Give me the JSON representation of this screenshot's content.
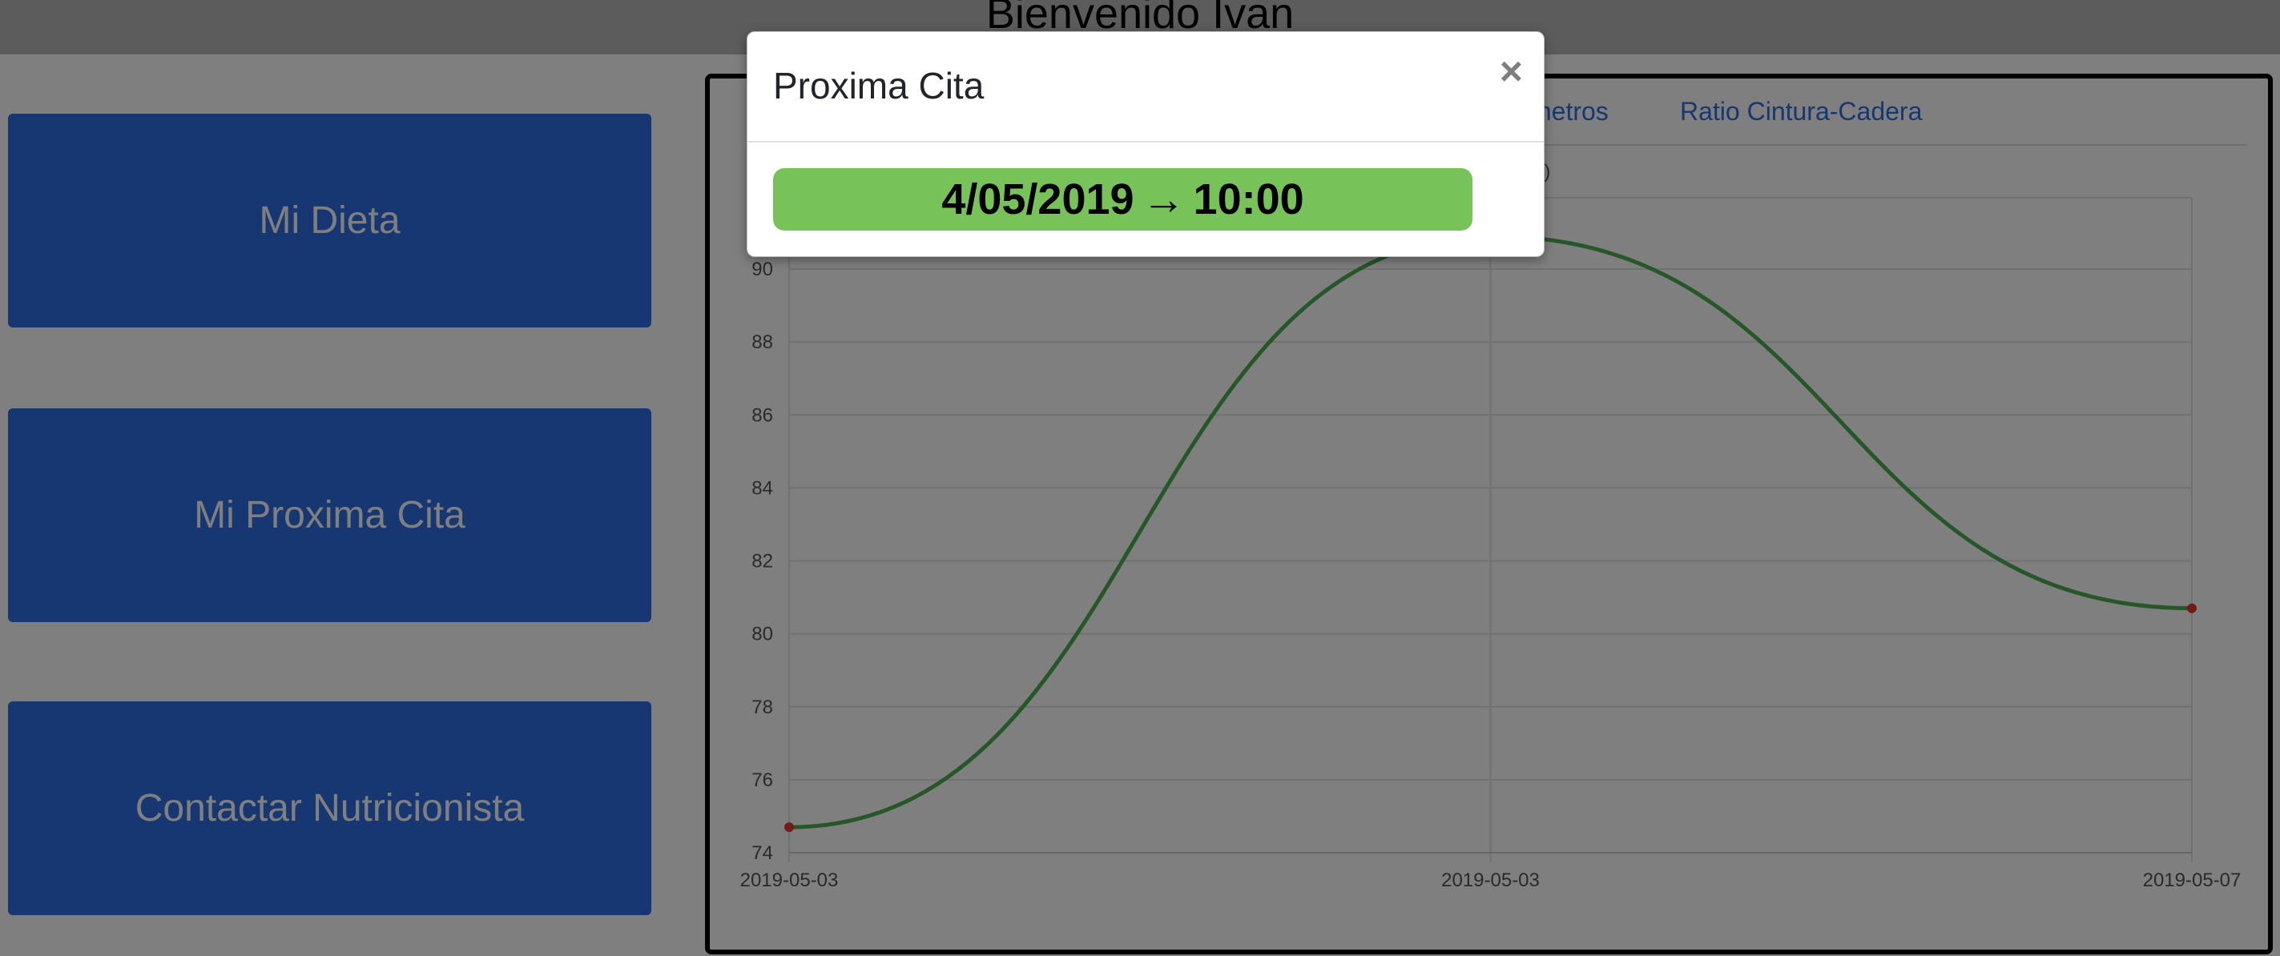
{
  "header": {
    "title": "Bienvenido Ivan"
  },
  "sidebar": {
    "buttons": [
      {
        "label": "Mi Dieta"
      },
      {
        "label": "Mi Proxima Cita"
      },
      {
        "label": "Contactar Nutricionista"
      }
    ]
  },
  "tabs": [
    {
      "label": "metros"
    },
    {
      "label": "Ratio Cintura-Cadera"
    }
  ],
  "chart_title_fragment": "g)",
  "colors": {
    "primary": "#2f6ee6",
    "line": "#4caf50",
    "point": "#e53935",
    "badge": "#77c35a"
  },
  "chart_data": {
    "type": "line",
    "x": [
      "2019-05-03",
      "2019-05-03",
      "2019-05-07"
    ],
    "series": [
      {
        "values": [
          74.7,
          90.9,
          80.7
        ]
      }
    ],
    "ylim": [
      74,
      90
    ],
    "yticks": [
      "74",
      "76",
      "78",
      "80",
      "82",
      "84",
      "86",
      "88",
      "90"
    ],
    "grid": true
  },
  "modal": {
    "title": "Proxima Cita",
    "close_symbol": "×",
    "date": "4/05/2019",
    "arrow": "→",
    "time": "10:00"
  }
}
